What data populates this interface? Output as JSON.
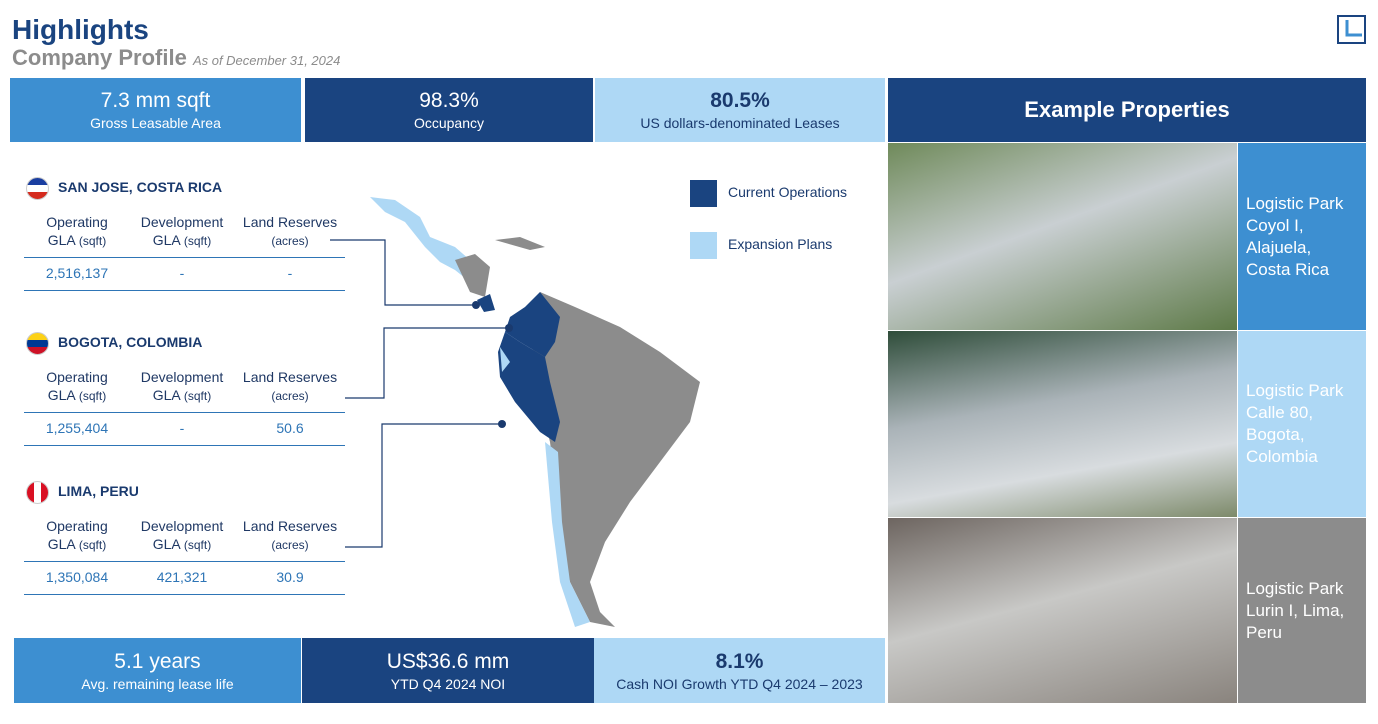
{
  "header": {
    "title": "Highlights",
    "subtitle": "Company Profile",
    "date": "As of December 31, 2024"
  },
  "top_stats": [
    {
      "value": "7.3 mm sqft",
      "label": "Gross Leasable Area"
    },
    {
      "value": "98.3%",
      "label": "Occupancy"
    },
    {
      "value": "80.5%",
      "label": "US dollars-denominated Leases"
    }
  ],
  "table_headers": [
    {
      "line1": "Operating",
      "line2": "GLA",
      "unit": "(sqft)"
    },
    {
      "line1": "Development",
      "line2": "GLA",
      "unit": "(sqft)"
    },
    {
      "line1": "Land Reserves",
      "unit": "(acres)"
    }
  ],
  "locations": [
    {
      "name": "SAN JOSE, COSTA RICA",
      "values": [
        "2,516,137",
        "-",
        "-"
      ]
    },
    {
      "name": "BOGOTA, COLOMBIA",
      "values": [
        "1,255,404",
        "-",
        "50.6"
      ]
    },
    {
      "name": "LIMA, PERU",
      "values": [
        "1,350,084",
        "421,321",
        "30.9"
      ]
    }
  ],
  "legend": [
    "Current Operations",
    "Expansion Plans"
  ],
  "example_heading": "Example Properties",
  "properties": [
    "Logistic Park Coyol I, Alajuela, Costa Rica",
    "Logistic Park Calle 80, Bogota, Colombia",
    "Logistic Park Lurin I, Lima, Peru"
  ],
  "bottom_stats": [
    {
      "value": "5.1 years",
      "label": "Avg. remaining lease life"
    },
    {
      "value": "US$36.6 mm",
      "label": "YTD Q4 2024 NOI"
    },
    {
      "value": "8.1%",
      "label": "Cash NOI Growth YTD Q4  2024 – 2023"
    }
  ]
}
